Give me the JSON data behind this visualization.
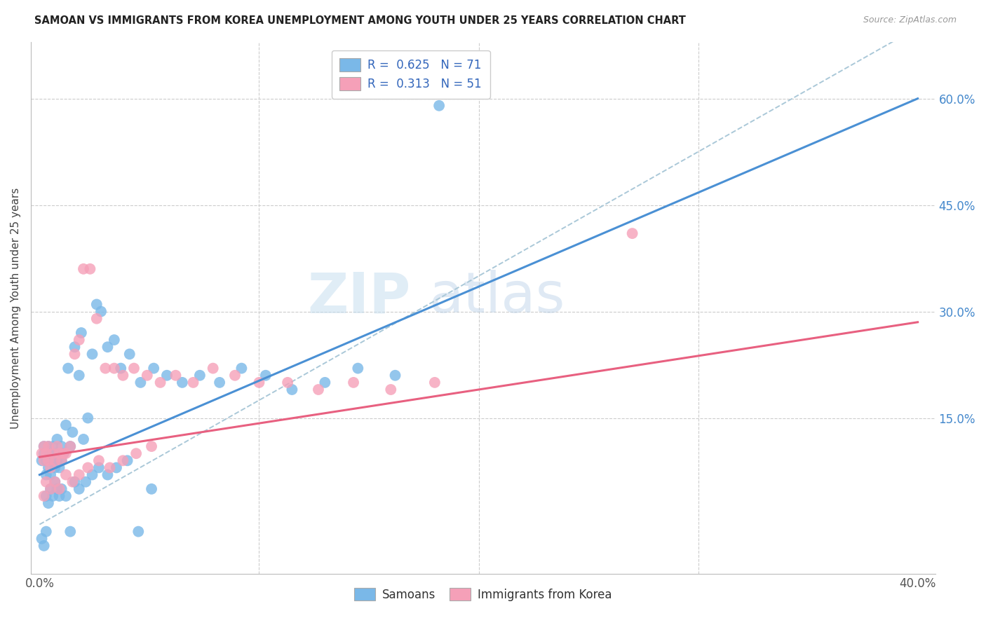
{
  "title": "SAMOAN VS IMMIGRANTS FROM KOREA UNEMPLOYMENT AMONG YOUTH UNDER 25 YEARS CORRELATION CHART",
  "source": "Source: ZipAtlas.com",
  "ylabel": "Unemployment Among Youth under 25 years",
  "right_yticks": [
    "60.0%",
    "45.0%",
    "30.0%",
    "15.0%"
  ],
  "right_ytick_vals": [
    0.6,
    0.45,
    0.3,
    0.15
  ],
  "legend_line1": "R =  0.625   N = 71",
  "legend_line2": "R =  0.313   N = 51",
  "samoans_color": "#7ab8e8",
  "korea_color": "#f5a0b8",
  "samoans_line_color": "#4a90d4",
  "korea_line_color": "#e86080",
  "dashed_line_color": "#aac8d8",
  "background_color": "#ffffff",
  "watermark_zip": "ZIP",
  "watermark_atlas": "atlas",
  "xlim_min": -0.004,
  "xlim_max": 0.408,
  "ylim_min": -0.07,
  "ylim_max": 0.68,
  "samoans_line_x0": 0.0,
  "samoans_line_y0": 0.07,
  "samoans_line_x1": 0.4,
  "samoans_line_y1": 0.6,
  "korea_line_x0": 0.0,
  "korea_line_y0": 0.095,
  "korea_line_x1": 0.4,
  "korea_line_y1": 0.285,
  "samoans_x": [
    0.001,
    0.002,
    0.002,
    0.003,
    0.003,
    0.004,
    0.004,
    0.005,
    0.005,
    0.006,
    0.006,
    0.007,
    0.007,
    0.008,
    0.008,
    0.009,
    0.01,
    0.01,
    0.011,
    0.012,
    0.013,
    0.014,
    0.015,
    0.016,
    0.018,
    0.019,
    0.02,
    0.022,
    0.024,
    0.026,
    0.028,
    0.031,
    0.034,
    0.037,
    0.041,
    0.046,
    0.052,
    0.058,
    0.065,
    0.073,
    0.082,
    0.092,
    0.103,
    0.115,
    0.13,
    0.145,
    0.162,
    0.182,
    0.001,
    0.002,
    0.003,
    0.003,
    0.004,
    0.005,
    0.006,
    0.007,
    0.008,
    0.009,
    0.01,
    0.012,
    0.014,
    0.016,
    0.018,
    0.021,
    0.024,
    0.027,
    0.031,
    0.035,
    0.04,
    0.045,
    0.051
  ],
  "samoans_y": [
    0.09,
    0.1,
    0.11,
    0.07,
    0.09,
    0.08,
    0.11,
    0.1,
    0.07,
    0.09,
    0.11,
    0.08,
    0.1,
    0.09,
    0.12,
    0.08,
    0.09,
    0.11,
    0.1,
    0.14,
    0.22,
    0.11,
    0.13,
    0.25,
    0.21,
    0.27,
    0.12,
    0.15,
    0.24,
    0.31,
    0.3,
    0.25,
    0.26,
    0.22,
    0.24,
    0.2,
    0.22,
    0.21,
    0.2,
    0.21,
    0.2,
    0.22,
    0.21,
    0.19,
    0.2,
    0.22,
    0.21,
    0.59,
    -0.02,
    -0.03,
    -0.01,
    0.04,
    0.03,
    0.05,
    0.04,
    0.06,
    0.05,
    0.04,
    0.05,
    0.04,
    -0.01,
    0.06,
    0.05,
    0.06,
    0.07,
    0.08,
    0.07,
    0.08,
    0.09,
    -0.01,
    0.05
  ],
  "korea_x": [
    0.001,
    0.002,
    0.002,
    0.003,
    0.004,
    0.004,
    0.005,
    0.006,
    0.007,
    0.008,
    0.009,
    0.01,
    0.011,
    0.012,
    0.014,
    0.016,
    0.018,
    0.02,
    0.023,
    0.026,
    0.03,
    0.034,
    0.038,
    0.043,
    0.049,
    0.055,
    0.062,
    0.07,
    0.079,
    0.089,
    0.1,
    0.113,
    0.127,
    0.143,
    0.16,
    0.18,
    0.27,
    0.002,
    0.003,
    0.005,
    0.007,
    0.009,
    0.012,
    0.015,
    0.018,
    0.022,
    0.027,
    0.032,
    0.038,
    0.044,
    0.051
  ],
  "korea_y": [
    0.1,
    0.09,
    0.11,
    0.1,
    0.09,
    0.11,
    0.08,
    0.1,
    0.09,
    0.11,
    0.1,
    0.09,
    0.1,
    0.1,
    0.11,
    0.24,
    0.26,
    0.36,
    0.36,
    0.29,
    0.22,
    0.22,
    0.21,
    0.22,
    0.21,
    0.2,
    0.21,
    0.2,
    0.22,
    0.21,
    0.2,
    0.2,
    0.19,
    0.2,
    0.19,
    0.2,
    0.41,
    0.04,
    0.06,
    0.05,
    0.06,
    0.05,
    0.07,
    0.06,
    0.07,
    0.08,
    0.09,
    0.08,
    0.09,
    0.1,
    0.11
  ]
}
